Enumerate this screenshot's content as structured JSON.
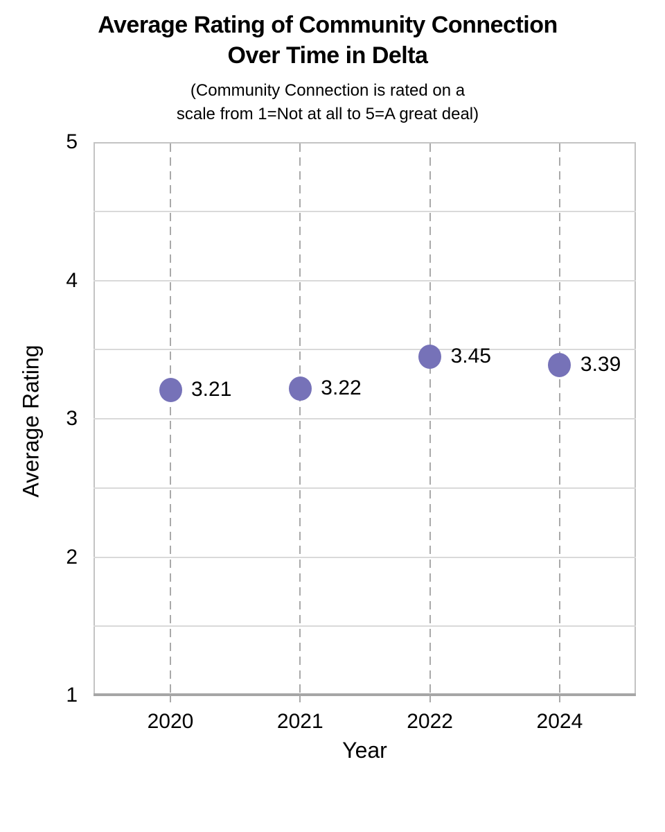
{
  "figure": {
    "title_line1": "Average Rating of Community Connection",
    "title_line2": "Over Time in Delta",
    "subtitle_line1": "(Community Connection is rated on a",
    "subtitle_line2": "scale from 1=Not at all to 5=A great deal)"
  },
  "chart_data": {
    "type": "scatter",
    "title": "Average Rating of Community Connection Over Time in Delta",
    "subtitle": "(Community Connection is rated on a scale from 1=Not at all to 5=A great deal)",
    "categories": [
      "2020",
      "2021",
      "2022",
      "2024"
    ],
    "values": [
      3.21,
      3.22,
      3.45,
      3.39
    ],
    "point_labels": [
      "3.21",
      "3.22",
      "3.45",
      "3.39"
    ],
    "xlabel": "Year",
    "ylabel": "Average Rating",
    "ylim": [
      1,
      5
    ],
    "yticks": [
      "5",
      "4",
      "3",
      "2",
      "1"
    ],
    "ytick_values": [
      5,
      4,
      3,
      2,
      1
    ],
    "grid": {
      "horizontal_interval": 0.5,
      "horizontal_style": "solid",
      "vertical_style": "dashed-at-each-category"
    },
    "legend_position": "none",
    "colors": {
      "marker": "#7672b8",
      "horizontal_grid": "#d9d9d9",
      "vertical_grid": "#a9a9a9",
      "axis_line": "#a6a6a6",
      "plot_border": "#c3c3c3",
      "text": "#000000"
    }
  }
}
